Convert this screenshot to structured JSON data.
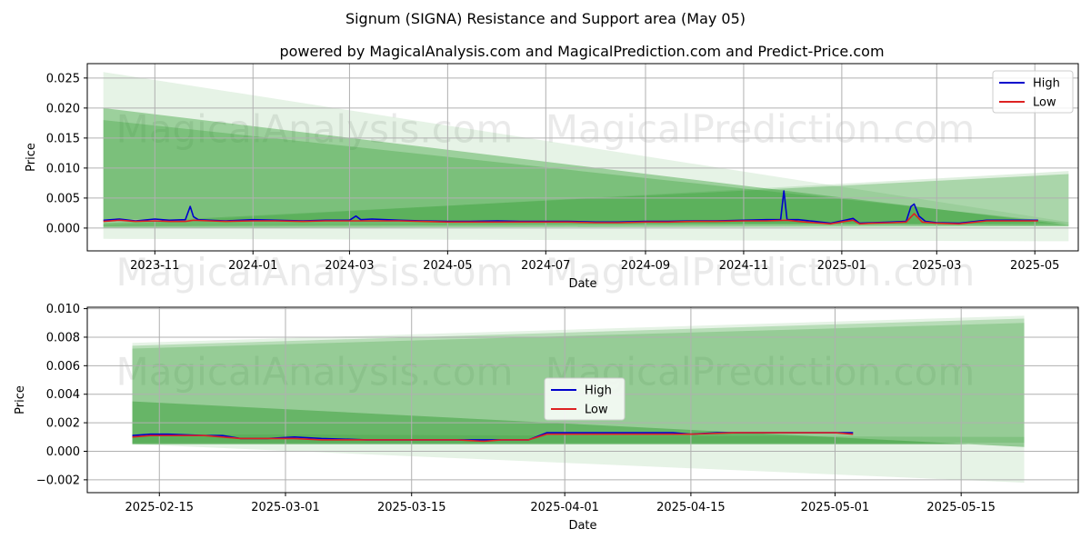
{
  "title": "Signum (SIGNA) Resistance and Support area (May 05)",
  "subtitle": "powered by MagicalAnalysis.com and MagicalPrediction.com and Predict-Price.com",
  "watermarks": [
    "MagicalAnalysis.com",
    "MagicalPrediction.com"
  ],
  "colors": {
    "high": "#0000cc",
    "low": "#dd2222",
    "band": "#2e9a2e",
    "grid": "#b0b0b0"
  },
  "chart_data": [
    {
      "type": "line",
      "xlabel": "Date",
      "ylabel": "Price",
      "xlim": [
        "2023-09-20",
        "2025-05-28"
      ],
      "ylim": [
        -0.0038,
        0.0274
      ],
      "x_ticks": [
        "2023-11",
        "2024-01",
        "2024-03",
        "2024-05",
        "2024-07",
        "2024-09",
        "2024-11",
        "2025-01",
        "2025-03",
        "2025-05"
      ],
      "y_ticks": [
        "0.000",
        "0.005",
        "0.010",
        "0.015",
        "0.020",
        "0.025"
      ],
      "legend": {
        "placement": "top-right",
        "entries": [
          "High",
          "Low"
        ]
      },
      "grid": true,
      "bands": [
        {
          "x": [
            "2023-09-30",
            "2025-05-22"
          ],
          "top": [
            0.026,
            0.001
          ],
          "bottom": [
            -0.0018,
            -0.0022
          ],
          "opacity": 0.12
        },
        {
          "x": [
            "2023-09-30",
            "2025-05-22"
          ],
          "top": [
            0.02,
            0.0005
          ],
          "bottom": [
            0.0,
            0.0003
          ],
          "opacity": 0.4
        },
        {
          "x": [
            "2023-09-30",
            "2025-05-22"
          ],
          "top": [
            0.018,
            0.0008
          ],
          "bottom": [
            0.0015,
            0.0004
          ],
          "opacity": 0.3
        },
        {
          "x": [
            "2023-09-30",
            "2025-05-22"
          ],
          "top": [
            0.0008,
            0.009
          ],
          "bottom": [
            0.0003,
            0.0008
          ],
          "opacity": 0.3
        },
        {
          "x": [
            "2023-09-30",
            "2025-05-22"
          ],
          "top": [
            0.0005,
            0.0095
          ],
          "bottom": [
            0.0002,
            0.0005
          ],
          "opacity": 0.15
        }
      ],
      "series": [
        {
          "name": "High",
          "x": [
            "2023-09-30",
            "2023-10-10",
            "2023-10-20",
            "2023-11-01",
            "2023-11-10",
            "2023-11-20",
            "2023-11-23",
            "2023-11-25",
            "2023-11-28",
            "2023-12-05",
            "2023-12-15",
            "2024-01-01",
            "2024-01-15",
            "2024-02-01",
            "2024-02-15",
            "2024-03-01",
            "2024-03-05",
            "2024-03-08",
            "2024-03-15",
            "2024-04-01",
            "2024-04-15",
            "2024-05-01",
            "2024-05-15",
            "2024-06-01",
            "2024-06-15",
            "2024-07-01",
            "2024-07-15",
            "2024-08-01",
            "2024-08-15",
            "2024-09-01",
            "2024-09-15",
            "2024-10-01",
            "2024-10-15",
            "2024-11-01",
            "2024-11-15",
            "2024-11-24",
            "2024-11-26",
            "2024-11-28",
            "2024-12-05",
            "2024-12-15",
            "2024-12-25",
            "2025-01-03",
            "2025-01-08",
            "2025-01-12",
            "2025-01-20",
            "2025-02-01",
            "2025-02-10",
            "2025-02-13",
            "2025-02-15",
            "2025-02-18",
            "2025-02-22",
            "2025-03-01",
            "2025-03-15",
            "2025-04-01",
            "2025-04-15",
            "2025-05-03"
          ],
          "y": [
            0.0013,
            0.0015,
            0.0012,
            0.0015,
            0.0013,
            0.0014,
            0.0036,
            0.0019,
            0.0014,
            0.0013,
            0.0012,
            0.0014,
            0.0013,
            0.0012,
            0.0013,
            0.0013,
            0.002,
            0.0014,
            0.0015,
            0.0013,
            0.0012,
            0.0011,
            0.0011,
            0.0012,
            0.0011,
            0.0011,
            0.0011,
            0.001,
            0.001,
            0.0011,
            0.0011,
            0.0012,
            0.0012,
            0.0013,
            0.0014,
            0.0014,
            0.0062,
            0.0014,
            0.0014,
            0.0011,
            0.0008,
            0.0013,
            0.0016,
            0.0008,
            0.0009,
            0.001,
            0.0011,
            0.0036,
            0.004,
            0.002,
            0.0011,
            0.0009,
            0.0008,
            0.0013,
            0.0013,
            0.0013
          ]
        },
        {
          "name": "Low",
          "x": [
            "2023-09-30",
            "2023-10-10",
            "2023-10-20",
            "2023-11-01",
            "2023-11-10",
            "2023-11-20",
            "2023-11-25",
            "2023-12-05",
            "2023-12-15",
            "2024-01-01",
            "2024-01-15",
            "2024-02-01",
            "2024-02-15",
            "2024-03-01",
            "2024-03-15",
            "2024-04-01",
            "2024-04-15",
            "2024-05-01",
            "2024-05-15",
            "2024-06-01",
            "2024-06-15",
            "2024-07-01",
            "2024-07-15",
            "2024-08-01",
            "2024-08-15",
            "2024-09-01",
            "2024-09-15",
            "2024-10-01",
            "2024-10-15",
            "2024-11-01",
            "2024-11-15",
            "2024-11-28",
            "2024-12-05",
            "2024-12-15",
            "2024-12-25",
            "2025-01-03",
            "2025-01-08",
            "2025-01-12",
            "2025-01-20",
            "2025-02-01",
            "2025-02-10",
            "2025-02-15",
            "2025-02-20",
            "2025-03-01",
            "2025-03-15",
            "2025-04-01",
            "2025-04-15",
            "2025-05-03"
          ],
          "y": [
            0.0011,
            0.0013,
            0.0011,
            0.0012,
            0.0011,
            0.0011,
            0.0013,
            0.0012,
            0.0011,
            0.0012,
            0.0012,
            0.0011,
            0.0012,
            0.0012,
            0.0012,
            0.0012,
            0.0011,
            0.001,
            0.001,
            0.001,
            0.001,
            0.001,
            0.001,
            0.0009,
            0.0009,
            0.001,
            0.001,
            0.0011,
            0.0011,
            0.0012,
            0.0012,
            0.0013,
            0.0011,
            0.0009,
            0.0007,
            0.0011,
            0.0013,
            0.0007,
            0.0008,
            0.0009,
            0.001,
            0.0024,
            0.001,
            0.0008,
            0.0007,
            0.0012,
            0.0012,
            0.0012
          ]
        }
      ]
    },
    {
      "type": "line",
      "xlabel": "Date",
      "ylabel": "Price",
      "xlim": [
        "2025-02-07",
        "2025-05-28"
      ],
      "ylim": [
        -0.0029,
        0.0101
      ],
      "x_ticks": [
        "2025-02-15",
        "2025-03-01",
        "2025-03-15",
        "2025-04-01",
        "2025-04-15",
        "2025-05-01",
        "2025-05-15"
      ],
      "y_ticks": [
        "−0.002",
        "0.000",
        "0.002",
        "0.004",
        "0.006",
        "0.008",
        "0.010"
      ],
      "legend": {
        "placement": "center",
        "entries": [
          "High",
          "Low"
        ]
      },
      "grid": true,
      "bands": [
        {
          "x": [
            "2025-02-12",
            "2025-05-22"
          ],
          "top": [
            0.0076,
            0.0095
          ],
          "bottom": [
            0.0005,
            -0.0022
          ],
          "opacity": 0.12
        },
        {
          "x": [
            "2025-02-12",
            "2025-05-22"
          ],
          "top": [
            0.0074,
            0.0093
          ],
          "bottom": [
            0.0005,
            0.0005
          ],
          "opacity": 0.25
        },
        {
          "x": [
            "2025-02-12",
            "2025-05-22"
          ],
          "top": [
            0.0072,
            0.009
          ],
          "bottom": [
            0.0005,
            0.0005
          ],
          "opacity": 0.25
        },
        {
          "x": [
            "2025-02-12",
            "2025-05-22"
          ],
          "top": [
            0.0035,
            0.0003
          ],
          "bottom": [
            0.0005,
            0.0005
          ],
          "opacity": 0.45
        },
        {
          "x": [
            "2025-02-12",
            "2025-05-22"
          ],
          "top": [
            0.0012,
            0.001
          ],
          "bottom": [
            0.0006,
            0.0006
          ],
          "opacity": 0.2
        }
      ],
      "series": [
        {
          "name": "High",
          "x": [
            "2025-02-12",
            "2025-02-14",
            "2025-02-16",
            "2025-02-20",
            "2025-02-22",
            "2025-02-24",
            "2025-02-27",
            "2025-03-02",
            "2025-03-05",
            "2025-03-10",
            "2025-03-15",
            "2025-03-20",
            "2025-03-23",
            "2025-03-25",
            "2025-03-28",
            "2025-03-30",
            "2025-04-01",
            "2025-04-05",
            "2025-04-10",
            "2025-04-13",
            "2025-04-15",
            "2025-04-18",
            "2025-04-20",
            "2025-04-25",
            "2025-05-01",
            "2025-05-03"
          ],
          "y": [
            0.0011,
            0.0012,
            0.0012,
            0.0011,
            0.0011,
            0.0009,
            0.0009,
            0.001,
            0.0009,
            0.0008,
            0.0008,
            0.0008,
            0.0008,
            0.0008,
            0.0008,
            0.0013,
            0.0013,
            0.0013,
            0.0013,
            0.0013,
            0.0012,
            0.0013,
            0.0013,
            0.0013,
            0.0013,
            0.0013
          ]
        },
        {
          "name": "Low",
          "x": [
            "2025-02-12",
            "2025-02-14",
            "2025-02-16",
            "2025-02-20",
            "2025-02-22",
            "2025-02-24",
            "2025-02-27",
            "2025-03-02",
            "2025-03-05",
            "2025-03-10",
            "2025-03-15",
            "2025-03-20",
            "2025-03-23",
            "2025-03-25",
            "2025-03-28",
            "2025-03-30",
            "2025-04-01",
            "2025-04-05",
            "2025-04-10",
            "2025-04-15",
            "2025-04-20",
            "2025-04-25",
            "2025-05-01",
            "2025-05-03"
          ],
          "y": [
            0.001,
            0.0011,
            0.0011,
            0.0011,
            0.001,
            0.0009,
            0.0009,
            0.0009,
            0.0008,
            0.0008,
            0.0008,
            0.0008,
            0.0007,
            0.0008,
            0.0008,
            0.0012,
            0.0012,
            0.0012,
            0.0012,
            0.0012,
            0.0013,
            0.0013,
            0.0013,
            0.0012
          ]
        }
      ]
    }
  ]
}
